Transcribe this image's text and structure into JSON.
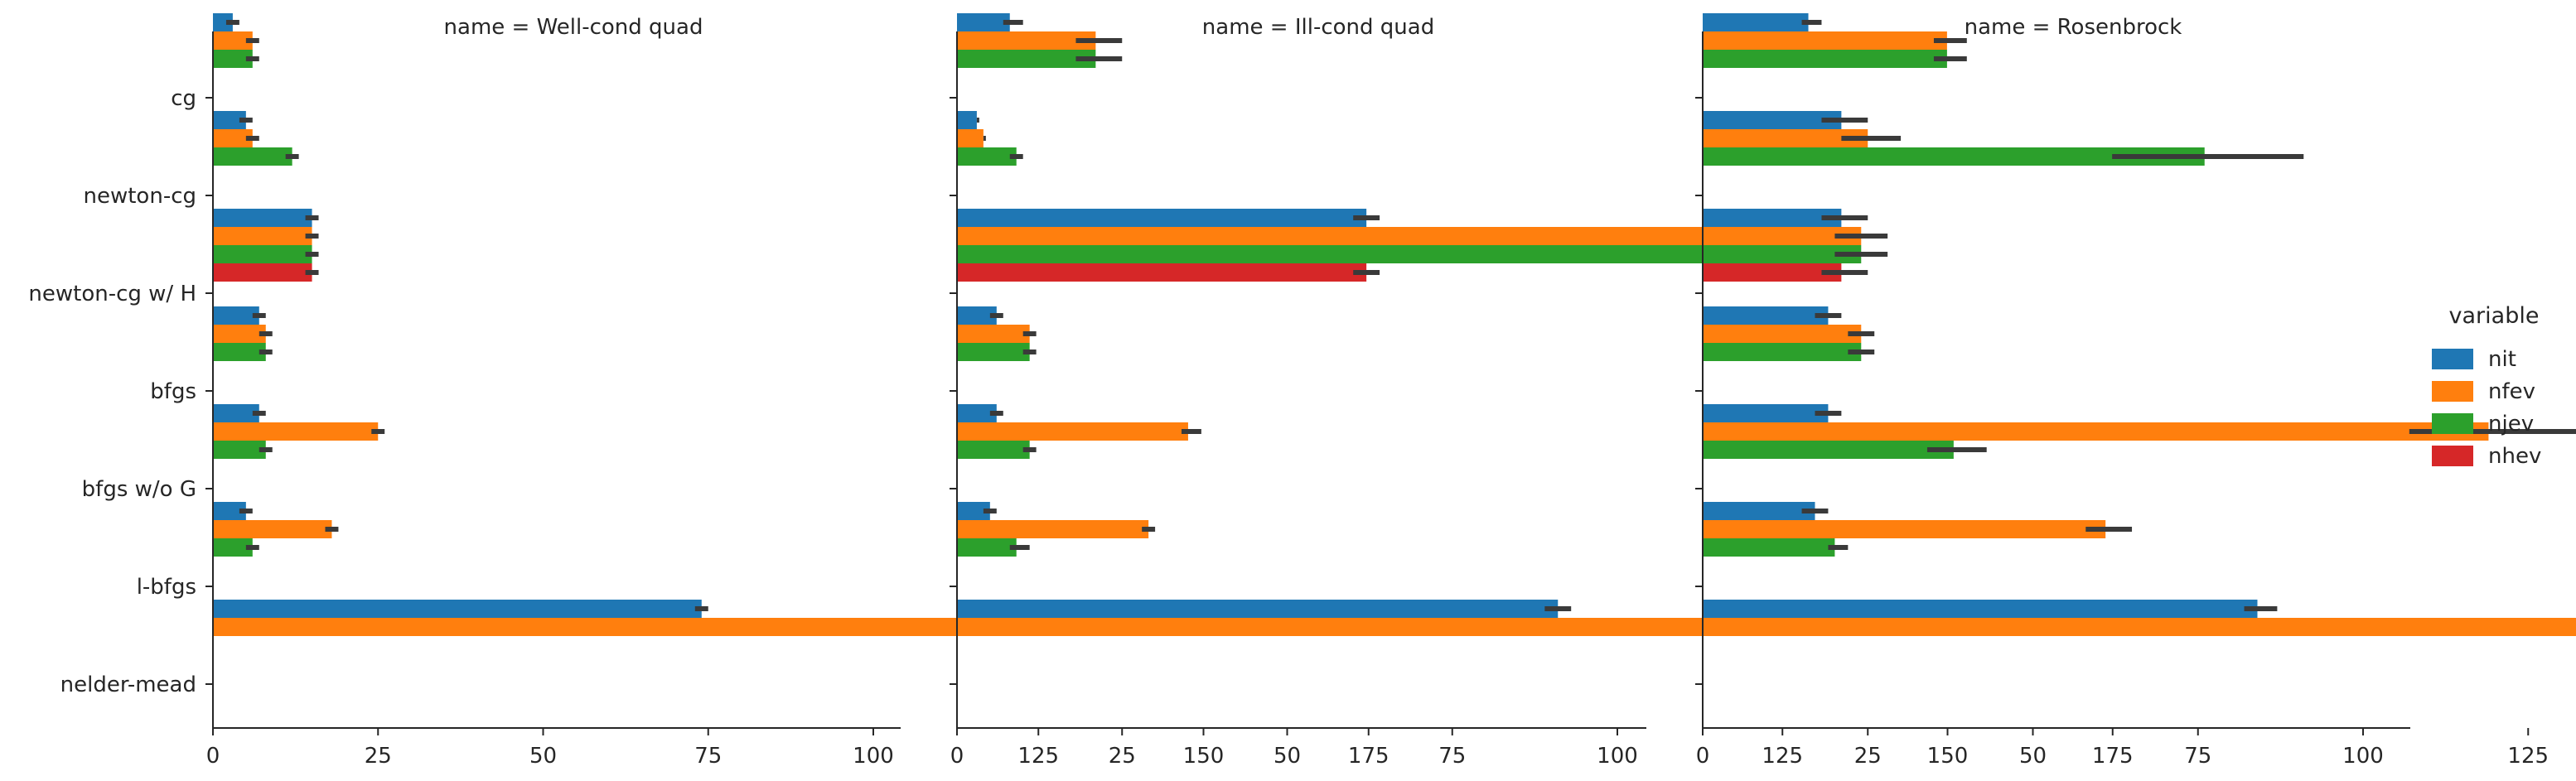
{
  "chart_data": {
    "type": "bar",
    "orientation": "horizontal",
    "facet_var": "name",
    "categories": [
      "cg",
      "newton-cg",
      "newton-cg w/ H",
      "bfgs",
      "bfgs w/o G",
      "l-bfgs",
      "nelder-mead"
    ],
    "legend": {
      "title": "variable",
      "position": "right"
    },
    "series_colors": {
      "nit": "#1f77b4",
      "nfev": "#ff7f0e",
      "njev": "#2ca02c",
      "nhev": "#d62728"
    },
    "error_bar_color": "#3a3a3a",
    "xlim": [
      0,
      185
    ],
    "xticks": [
      0,
      25,
      50,
      75,
      100,
      125,
      150,
      175
    ],
    "grid": false,
    "panels": [
      {
        "title": "name = Well-cond quad",
        "series": [
          {
            "name": "nit",
            "values": [
              3,
              5,
              15,
              7,
              7,
              5,
              74
            ],
            "ci": [
              [
                2,
                4
              ],
              [
                4,
                6
              ],
              [
                14,
                16
              ],
              [
                6,
                8
              ],
              [
                6,
                8
              ],
              [
                4,
                6
              ],
              [
                73,
                75
              ]
            ]
          },
          {
            "name": "nfev",
            "values": [
              6,
              6,
              15,
              8,
              25,
              18,
              141
            ],
            "ci": [
              [
                5,
                7
              ],
              [
                5,
                7
              ],
              [
                14,
                16
              ],
              [
                7,
                9
              ],
              [
                24,
                26
              ],
              [
                17,
                19
              ],
              [
                139,
                143
              ]
            ]
          },
          {
            "name": "njev",
            "values": [
              6,
              12,
              15,
              8,
              8,
              6,
              null
            ],
            "ci": [
              [
                5,
                7
              ],
              [
                11,
                13
              ],
              [
                14,
                16
              ],
              [
                7,
                9
              ],
              [
                7,
                9
              ],
              [
                5,
                7
              ],
              null
            ]
          },
          {
            "name": "nhev",
            "values": [
              null,
              null,
              15,
              null,
              null,
              null,
              null
            ],
            "ci": [
              null,
              null,
              [
                14,
                16
              ],
              null,
              null,
              null,
              null
            ]
          }
        ]
      },
      {
        "title": "name = Ill-cond quad",
        "series": [
          {
            "name": "nit",
            "values": [
              8,
              3,
              62,
              6,
              6,
              5,
              91
            ],
            "ci": [
              [
                7,
                10
              ],
              [
                3,
                3
              ],
              [
                60,
                64
              ],
              [
                5,
                7
              ],
              [
                5,
                7
              ],
              [
                4,
                6
              ],
              [
                89,
                93
              ]
            ]
          },
          {
            "name": "nfev",
            "values": [
              21,
              4,
              119,
              11,
              35,
              29,
              175
            ],
            "ci": [
              [
                18,
                25
              ],
              [
                4,
                4
              ],
              [
                114,
                123
              ],
              [
                10,
                12
              ],
              [
                34,
                37
              ],
              [
                28,
                30
              ],
              [
                171,
                179
              ]
            ]
          },
          {
            "name": "njev",
            "values": [
              21,
              9,
              119,
              11,
              11,
              9,
              null
            ],
            "ci": [
              [
                18,
                25
              ],
              [
                8,
                10
              ],
              [
                114,
                123
              ],
              [
                10,
                12
              ],
              [
                10,
                12
              ],
              [
                8,
                11
              ],
              null
            ]
          },
          {
            "name": "nhev",
            "values": [
              null,
              null,
              62,
              null,
              null,
              null,
              null
            ],
            "ci": [
              null,
              null,
              [
                60,
                64
              ],
              null,
              null,
              null,
              null
            ]
          }
        ]
      },
      {
        "title": "name = Rosenbrock",
        "series": [
          {
            "name": "nit",
            "values": [
              16,
              21,
              21,
              19,
              19,
              17,
              84
            ],
            "ci": [
              [
                15,
                18
              ],
              [
                18,
                25
              ],
              [
                18,
                25
              ],
              [
                17,
                21
              ],
              [
                17,
                21
              ],
              [
                15,
                19
              ],
              [
                82,
                87
              ]
            ]
          },
          {
            "name": "nfev",
            "values": [
              37,
              25,
              24,
              24,
              119,
              61,
              160
            ],
            "ci": [
              [
                35,
                40
              ],
              [
                21,
                30
              ],
              [
                20,
                28
              ],
              [
                22,
                26
              ],
              [
                107,
                133
              ],
              [
                58,
                65
              ],
              [
                155,
                165
              ]
            ]
          },
          {
            "name": "njev",
            "values": [
              37,
              76,
              24,
              24,
              38,
              20,
              null
            ],
            "ci": [
              [
                35,
                40
              ],
              [
                62,
                91
              ],
              [
                20,
                28
              ],
              [
                22,
                26
              ],
              [
                34,
                43
              ],
              [
                19,
                22
              ],
              null
            ]
          },
          {
            "name": "nhev",
            "values": [
              null,
              null,
              21,
              null,
              null,
              null,
              null
            ],
            "ci": [
              null,
              null,
              [
                18,
                25
              ],
              null,
              null,
              null,
              null
            ]
          }
        ]
      }
    ]
  }
}
